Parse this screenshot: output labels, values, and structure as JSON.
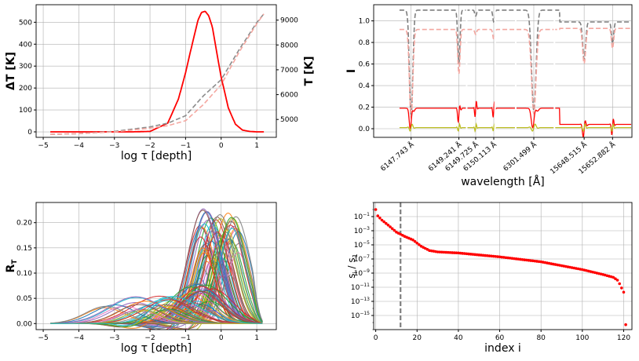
{
  "chart_data": [
    {
      "id": "dT",
      "type": "line",
      "xlabel": "log τ [depth]",
      "ylabel": "ΔT  [K]",
      "y2label": "T  [K]",
      "xlim": [
        -5.2,
        1.55
      ],
      "ylim": [
        -25,
        580
      ],
      "y2lim": [
        4280,
        9620
      ],
      "xticks": [
        -5,
        -4,
        -3,
        -2,
        -1,
        0,
        1
      ],
      "yticks": [
        0,
        100,
        200,
        300,
        400,
        500
      ],
      "y2ticks": [
        5000,
        6000,
        7000,
        8000,
        9000
      ],
      "grid": true,
      "series": [
        {
          "axis": "y",
          "color": "#ff0000",
          "dash": false,
          "x": [
            -4.8,
            -3.5,
            -2.5,
            -2.0,
            -1.5,
            -1.2,
            -1.0,
            -0.8,
            -0.65,
            -0.55,
            -0.45,
            -0.35,
            -0.25,
            -0.1,
            0.0,
            0.2,
            0.4,
            0.6,
            0.8,
            1.0,
            1.2
          ],
          "y": [
            0,
            0,
            0,
            2,
            40,
            150,
            270,
            410,
            510,
            545,
            550,
            530,
            480,
            340,
            250,
            110,
            35,
            8,
            2,
            0,
            0
          ]
        },
        {
          "axis": "y2",
          "color": "#8c8c8c",
          "dash": true,
          "x": [
            -4.8,
            -4.0,
            -3.0,
            -2.0,
            -1.5,
            -1.0,
            -0.5,
            0.0,
            0.5,
            1.0,
            1.2
          ],
          "y": [
            4400,
            4430,
            4520,
            4700,
            4850,
            5150,
            5950,
            6600,
            7800,
            8900,
            9250
          ]
        },
        {
          "axis": "y2",
          "color": "#f4a7a0",
          "dash": true,
          "x": [
            -4.8,
            -4.0,
            -3.0,
            -2.0,
            -1.5,
            -1.0,
            -0.5,
            0.0,
            0.5,
            1.0,
            1.2
          ],
          "y": [
            4400,
            4430,
            4500,
            4650,
            4750,
            4950,
            5600,
            6400,
            7700,
            8850,
            9250
          ]
        }
      ]
    },
    {
      "id": "I",
      "type": "line",
      "xlabel": "wavelength [Å]",
      "ylabel": "I",
      "ylim": [
        -0.08,
        1.15
      ],
      "yticks": [
        0.0,
        0.2,
        0.4,
        0.6,
        0.8,
        1.0
      ],
      "xticklabels": [
        "6147.743 Å",
        "6149.241 Å",
        "6149.725 Å",
        "6150.113 Å",
        "6301.499 Å",
        "15648.515 Å",
        "15652.882 Å"
      ],
      "xtickpos": [
        0.145,
        0.33,
        0.395,
        0.465,
        0.62,
        0.815,
        0.925
      ],
      "grid": true,
      "lines": [
        {
          "pos": 0.145,
          "depth": 0.9,
          "width": 0.009
        },
        {
          "pos": 0.33,
          "depth": 0.45,
          "width": 0.006
        },
        {
          "pos": 0.395,
          "depth": 0.05,
          "width": 0.005
        },
        {
          "pos": 0.465,
          "depth": 0.1,
          "width": 0.005
        },
        {
          "pos": 0.62,
          "depth": 0.85,
          "width": 0.012
        },
        {
          "pos": 0.815,
          "depth": 0.35,
          "width": 0.008
        },
        {
          "pos": 0.925,
          "depth": 0.2,
          "width": 0.006
        }
      ],
      "series": [
        {
          "name": "",
          "color": "#7f7f7f",
          "dash": true,
          "level": 1.1,
          "level_after": 0.99
        },
        {
          "name": "",
          "color": "#f4a7a0",
          "dash": true,
          "level": 0.92,
          "level_after": 0.93
        },
        {
          "name": "",
          "color": "#ff0000",
          "dash": false,
          "level": 0.19,
          "level_after": 0.04
        },
        {
          "name": "",
          "color": "#bcbd22",
          "dash": false,
          "level": 0.01,
          "level_after": 0.01
        }
      ]
    },
    {
      "id": "RT",
      "type": "line",
      "xlabel": "log τ [depth]",
      "ylabel": "R",
      "ylabel_sub": "T",
      "xlim": [
        -5.2,
        1.55
      ],
      "ylim": [
        -0.012,
        0.24
      ],
      "xticks": [
        -5,
        -4,
        -3,
        -2,
        -1,
        0,
        1
      ],
      "yticks": [
        0.0,
        0.05,
        0.1,
        0.15,
        0.2
      ],
      "ytickformat": 2,
      "grid": true,
      "family_count": 120
    },
    {
      "id": "sv",
      "type": "scatter",
      "xlabel": "index i",
      "ylabel": "s / s",
      "ylabel_subs": [
        "i",
        "1"
      ],
      "xlim": [
        -1,
        124
      ],
      "ylim_log": [
        -17,
        1
      ],
      "xticks": [
        0,
        20,
        40,
        60,
        80,
        100,
        120
      ],
      "yticks_exp": [
        -1,
        -3,
        -5,
        -7,
        -9,
        -11,
        -13,
        -15
      ],
      "vline_x": 12,
      "grid": true,
      "color": "#ff0000",
      "keypoints": [
        [
          0,
          0
        ],
        [
          1,
          -0.9
        ],
        [
          3,
          -1.5
        ],
        [
          6,
          -2.2
        ],
        [
          10,
          -3.2
        ],
        [
          14,
          -3.8
        ],
        [
          18,
          -4.3
        ],
        [
          22,
          -5.2
        ],
        [
          26,
          -5.8
        ],
        [
          30,
          -6.0
        ],
        [
          40,
          -6.15
        ],
        [
          60,
          -6.7
        ],
        [
          80,
          -7.4
        ],
        [
          100,
          -8.5
        ],
        [
          110,
          -9.2
        ],
        [
          115,
          -9.6
        ],
        [
          117,
          -10.0
        ],
        [
          118,
          -10.5
        ],
        [
          119,
          -11.1
        ],
        [
          120,
          -11.7
        ],
        [
          121,
          -16.3
        ]
      ]
    }
  ]
}
